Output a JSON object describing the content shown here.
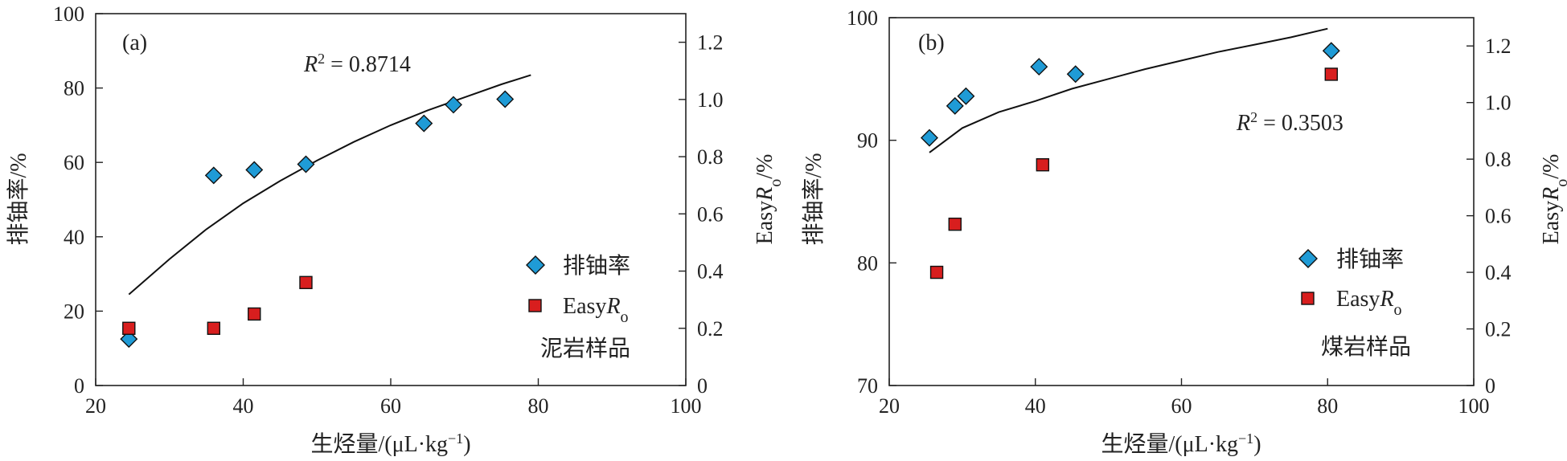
{
  "chart_data": [
    {
      "type": "scatter",
      "panel_label": "(a)",
      "sample_label": "泥岩样品",
      "x": {
        "label_prefix": "生烃量/(μL·kg",
        "label_sup": "−1",
        "label_suffix": ")",
        "range": [
          20,
          100
        ],
        "ticks": [
          "20",
          "40",
          "60",
          "80",
          "100"
        ]
      },
      "y_left": {
        "label": "排铀率/%",
        "range": [
          0,
          100
        ],
        "ticks": [
          "0",
          "20",
          "40",
          "60",
          "80",
          "100"
        ]
      },
      "y_right": {
        "label_prefix": "Easy",
        "label_italic": "R",
        "label_sub": "o",
        "label_suffix": "/%",
        "range": [
          0,
          1.3
        ],
        "ticks": [
          "0",
          "0.2",
          "0.4",
          "0.6",
          "0.8",
          "1.0",
          "1.2"
        ]
      },
      "r2": {
        "prefix": "R",
        "sup": "2",
        "text": " =  0.8714"
      },
      "legend": [
        {
          "text": "排铀率",
          "marker": "diamond",
          "color": "#1f9bd6"
        },
        {
          "text_prefix": "Easy",
          "text_italic": "R",
          "text_sub": "o",
          "marker": "square",
          "color": "#d81e1e"
        }
      ],
      "series": [
        {
          "axis": "left",
          "marker": "diamond",
          "x": [
            24.5,
            36.0,
            41.5,
            48.5,
            64.5,
            68.5,
            75.5
          ],
          "y": [
            12.5,
            56.5,
            58,
            59.5,
            70.5,
            75.5,
            77
          ]
        },
        {
          "axis": "right",
          "marker": "square",
          "x": [
            24.5,
            36.0,
            41.5,
            48.5
          ],
          "y": [
            0.2,
            0.2,
            0.25,
            0.36
          ]
        }
      ],
      "trendline": {
        "x": [
          24.5,
          30,
          35,
          40,
          45,
          50,
          55,
          60,
          65,
          70,
          75,
          79
        ],
        "y": [
          24.5,
          34,
          42,
          49,
          55,
          60.5,
          65.5,
          70,
          74,
          77.5,
          81,
          83.5
        ]
      }
    },
    {
      "type": "scatter",
      "panel_label": "(b)",
      "sample_label": "煤岩样品",
      "x": {
        "label_prefix": "生烃量/(μL·kg",
        "label_sup": "−1",
        "label_suffix": ")",
        "range": [
          20,
          100
        ],
        "ticks": [
          "20",
          "40",
          "60",
          "80",
          "100"
        ]
      },
      "y_left": {
        "label": "排铀率/%",
        "range": [
          70,
          100
        ],
        "ticks": [
          "70",
          "80",
          "90",
          "100"
        ]
      },
      "y_right": {
        "label_prefix": "Easy",
        "label_italic": "R",
        "label_sub": "o",
        "label_suffix": "/%",
        "range": [
          0,
          1.3
        ],
        "ticks": [
          "0",
          "0.2",
          "0.4",
          "0.6",
          "0.8",
          "1.0",
          "1.2"
        ]
      },
      "r2": {
        "prefix": "R",
        "sup": "2",
        "text": " =  0.3503"
      },
      "legend": [
        {
          "text": "排铀率",
          "marker": "diamond",
          "color": "#1f9bd6"
        },
        {
          "text_prefix": "Easy",
          "text_italic": "R",
          "text_sub": "o",
          "marker": "square",
          "color": "#d81e1e"
        }
      ],
      "series": [
        {
          "axis": "left",
          "marker": "diamond",
          "x": [
            25.5,
            29,
            30.5,
            40.5,
            45.5,
            80.5
          ],
          "y": [
            90.2,
            92.8,
            93.6,
            96,
            95.4,
            97.3
          ]
        },
        {
          "axis": "right",
          "marker": "square",
          "x": [
            26.5,
            29,
            41,
            80.5
          ],
          "y": [
            0.4,
            0.57,
            0.78,
            1.1
          ]
        }
      ],
      "trendline": {
        "x": [
          25.5,
          30,
          35,
          40,
          45,
          50,
          55,
          60,
          65,
          70,
          75,
          80
        ],
        "y": [
          89,
          91,
          92.3,
          93.2,
          94.2,
          95,
          95.8,
          96.5,
          97.2,
          97.8,
          98.4,
          99.1
        ]
      }
    }
  ]
}
